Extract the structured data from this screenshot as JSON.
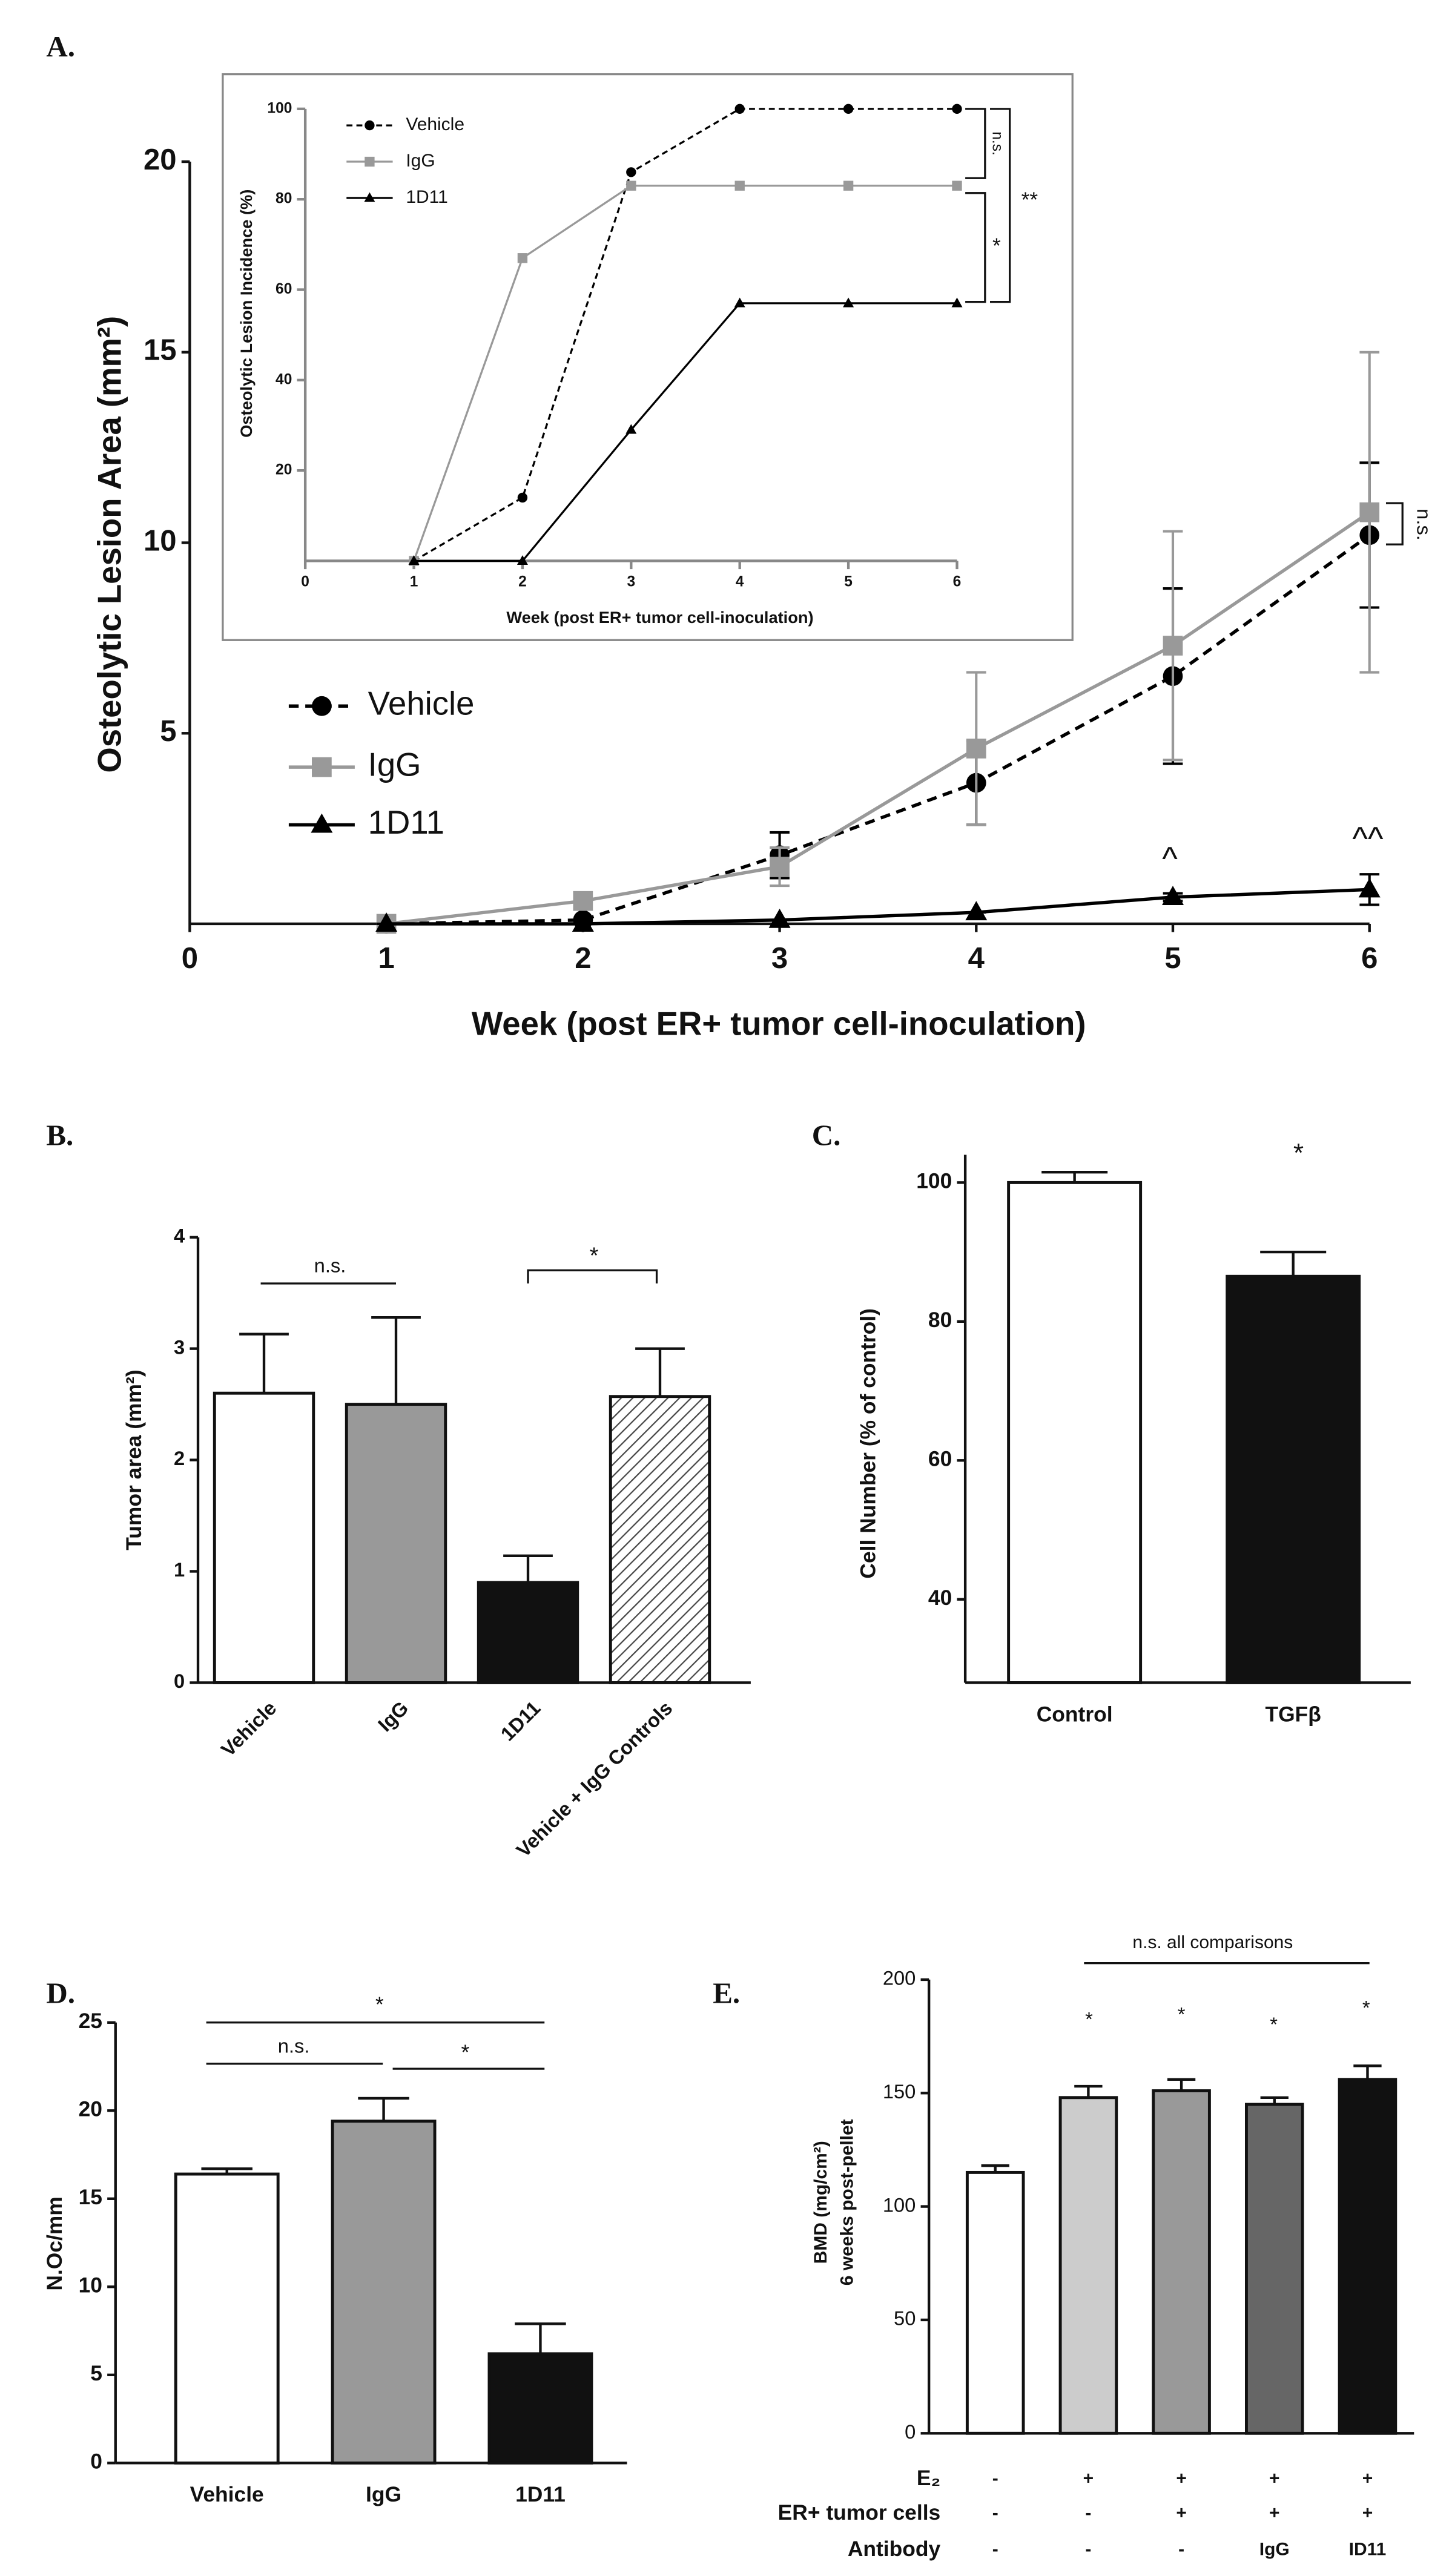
{
  "chart_data": [
    {
      "type": "line",
      "panel_label": "A.",
      "x_label": "Week (post ER+ tumor cell-inoculation)",
      "y_label": "Osteolytic Lesion Area (mm²)",
      "x": [
        1,
        2,
        3,
        4,
        5,
        6
      ],
      "xlim": [
        0,
        6
      ],
      "xticks": [
        0,
        1,
        2,
        3,
        4,
        5,
        6
      ],
      "ylim": [
        0,
        20
      ],
      "yticks": [
        5,
        10,
        15,
        20
      ],
      "series": [
        {
          "name": "Vehicle",
          "color": "#000000",
          "marker": "circle",
          "dashed": true,
          "values": [
            0,
            0.1,
            1.8,
            3.7,
            6.5,
            10.2
          ],
          "errors": [
            0,
            0,
            0.6,
            1.1,
            2.3,
            1.9
          ]
        },
        {
          "name": "IgG",
          "color": "#999999",
          "marker": "square",
          "dashed": false,
          "values": [
            0,
            0.6,
            1.5,
            4.6,
            7.3,
            10.8
          ],
          "errors": [
            0,
            0,
            0.5,
            2.0,
            3.0,
            4.2
          ]
        },
        {
          "name": "1D11",
          "color": "#000000",
          "marker": "triangle",
          "dashed": false,
          "values": [
            0,
            0,
            0.1,
            0.3,
            0.7,
            0.9
          ],
          "errors": [
            0,
            0,
            0,
            0,
            0.1,
            0.4
          ]
        }
      ],
      "annotations": [
        "n.s.",
        "^",
        "^^"
      ]
    },
    {
      "type": "line",
      "x_label": "Week (post ER+ tumor cell-inoculation)",
      "y_label": "Osteolytic Lesion Incidence (%)",
      "x": [
        1,
        2,
        3,
        4,
        5,
        6
      ],
      "xlim": [
        0,
        6
      ],
      "xticks": [
        0,
        1,
        2,
        3,
        4,
        5,
        6
      ],
      "ylim": [
        0,
        100
      ],
      "yticks": [
        20,
        40,
        60,
        80,
        100
      ],
      "series": [
        {
          "name": "Vehicle",
          "color": "#000000",
          "marker": "circle",
          "dashed": true,
          "values": [
            0,
            14,
            86,
            100,
            100,
            100
          ]
        },
        {
          "name": "IgG",
          "color": "#999999",
          "marker": "square",
          "dashed": false,
          "values": [
            0,
            67,
            83,
            83,
            83,
            83
          ]
        },
        {
          "name": "1D11",
          "color": "#000000",
          "marker": "triangle",
          "dashed": false,
          "values": [
            0,
            0,
            29,
            57,
            57,
            57
          ]
        }
      ],
      "annotations": [
        "n.s.",
        "*",
        "**"
      ]
    },
    {
      "type": "bar",
      "panel_label": "B.",
      "y_label": "Tumor area (mm²)",
      "categories": [
        "Vehicle",
        "IgG",
        "1D11",
        "Vehicle + IgG Controls"
      ],
      "values": [
        2.6,
        2.5,
        0.9,
        2.57
      ],
      "errors": [
        0.53,
        0.78,
        0.24,
        0.43
      ],
      "colors": [
        "#ffffff",
        "#999999",
        "#111111",
        "#ffffff"
      ],
      "patterns": [
        "solid",
        "solid",
        "solid",
        "hatch"
      ],
      "ylim": [
        0,
        4
      ],
      "yticks": [
        0,
        1,
        2,
        3,
        4
      ],
      "annotations": [
        "n.s.",
        "*"
      ]
    },
    {
      "type": "bar",
      "panel_label": "C.",
      "y_label": "Cell Number (% of control)",
      "categories": [
        "Control",
        "TGFβ"
      ],
      "values": [
        100,
        86.5
      ],
      "errors": [
        1.5,
        3.5
      ],
      "colors": [
        "#ffffff",
        "#111111"
      ],
      "patterns": [
        "solid",
        "solid"
      ],
      "ylim": [
        28,
        104
      ],
      "yticks": [
        40,
        60,
        80,
        100
      ],
      "annotations": [
        "*"
      ]
    },
    {
      "type": "bar",
      "panel_label": "D.",
      "y_label": "N.Oc/mm",
      "categories": [
        "Vehicle",
        "IgG",
        "1D11"
      ],
      "values": [
        16.4,
        19.4,
        6.2
      ],
      "errors": [
        0.3,
        1.3,
        1.7
      ],
      "colors": [
        "#ffffff",
        "#999999",
        "#111111"
      ],
      "patterns": [
        "solid",
        "solid",
        "solid"
      ],
      "ylim": [
        0,
        25
      ],
      "yticks": [
        0,
        5,
        10,
        15,
        20,
        25
      ],
      "annotations": [
        "*",
        "n.s.",
        "*"
      ]
    },
    {
      "type": "bar",
      "panel_label": "E.",
      "y_label": [
        "BMD (mg/cm²)",
        "6 weeks post-pellet"
      ],
      "values": [
        115,
        148,
        151,
        145,
        156
      ],
      "errors": [
        3,
        5,
        5,
        3,
        6
      ],
      "colors": [
        "#ffffff",
        "#cccccc",
        "#999999",
        "#666666",
        "#111111"
      ],
      "patterns": [
        "solid",
        "solid",
        "solid",
        "solid",
        "solid"
      ],
      "ylim": [
        0,
        200
      ],
      "yticks": [
        0,
        50,
        100,
        150,
        200
      ],
      "conditions": [
        {
          "label": "E₂",
          "values": [
            "-",
            "+",
            "+",
            "+",
            "+"
          ]
        },
        {
          "label": "ER+ tumor cells",
          "values": [
            "-",
            "-",
            "+",
            "+",
            "+"
          ]
        },
        {
          "label": "Antibody",
          "values": [
            "-",
            "-",
            "-",
            "IgG",
            "ID11"
          ]
        }
      ],
      "annotations": [
        "n.s. all comparisons",
        "*",
        "*",
        "*",
        "*"
      ]
    }
  ]
}
